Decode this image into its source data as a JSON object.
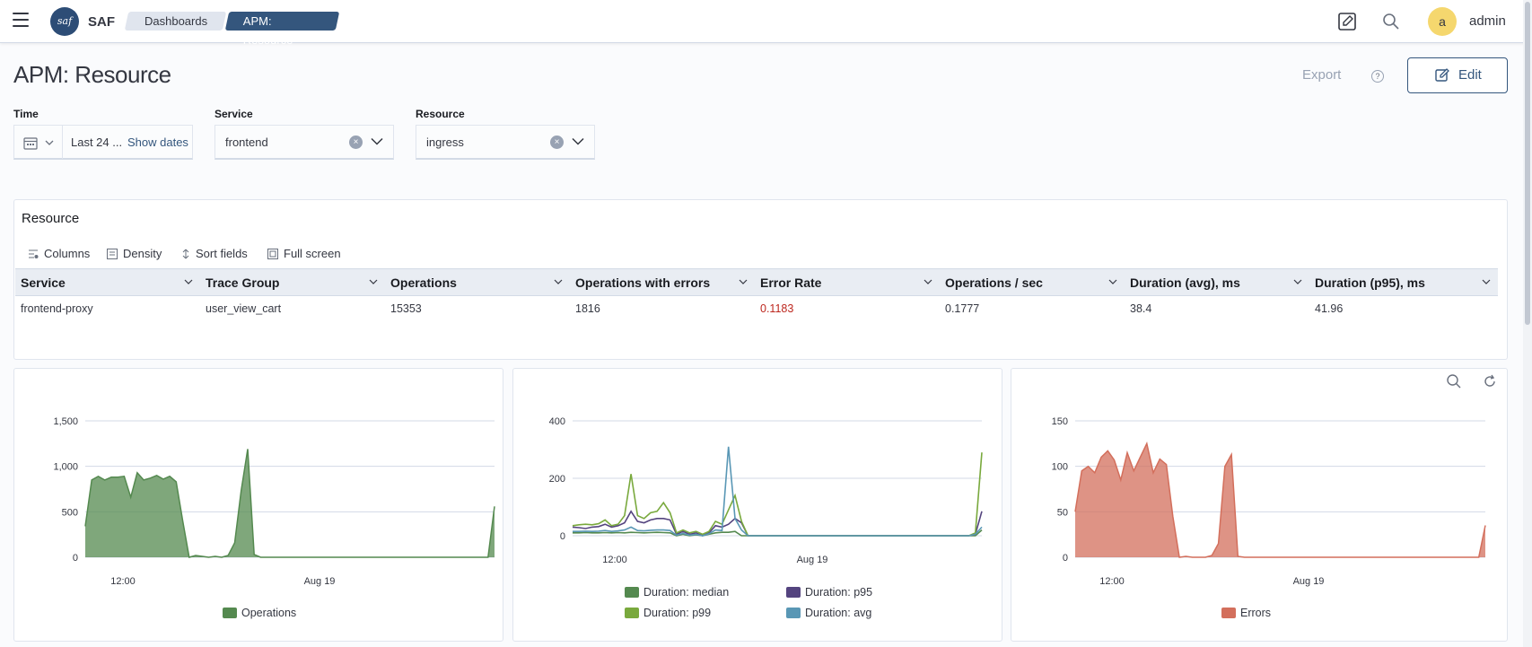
{
  "header": {
    "brand": "SAF",
    "logo_text": "saf",
    "breadcrumbs": [
      "Dashboards",
      "APM: Resource"
    ],
    "user_initial": "a",
    "username": "admin"
  },
  "page": {
    "title": "APM: Resource",
    "export_label": "Export",
    "help_label": "?",
    "edit_label": "Edit"
  },
  "controls": {
    "time": {
      "label": "Time",
      "value": "Last 24 ...",
      "show_dates": "Show dates"
    },
    "service": {
      "label": "Service",
      "value": "frontend"
    },
    "resource": {
      "label": "Resource",
      "value": "ingress"
    }
  },
  "table_panel": {
    "title": "Resource",
    "toolbar": [
      "Columns",
      "Density",
      "Sort fields",
      "Full screen"
    ],
    "columns": [
      "Service",
      "Trace Group",
      "Operations",
      "Operations with errors",
      "Error Rate",
      "Operations / sec",
      "Duration (avg), ms",
      "Duration (p95), ms"
    ],
    "rows": [
      [
        "frontend-proxy",
        "user_view_cart",
        "15353",
        "1816",
        "0.1183",
        "0.1777",
        "38.4",
        "41.96"
      ]
    ]
  },
  "chart_data": [
    {
      "type": "area",
      "x_ticks": [
        "12:00",
        "Aug 19"
      ],
      "y_ticks": [
        "0",
        "500",
        "1,000",
        "1,500"
      ],
      "ylim": [
        0,
        1500
      ],
      "series": [
        {
          "name": "Operations",
          "color": "#54894f",
          "values": [
            340,
            850,
            890,
            850,
            880,
            880,
            890,
            660,
            930,
            850,
            870,
            900,
            860,
            890,
            830,
            400,
            0,
            20,
            10,
            0,
            10,
            0,
            20,
            160,
            730,
            1190,
            30,
            0,
            0,
            0,
            0,
            0,
            0,
            0,
            0,
            0,
            0,
            0,
            0,
            0,
            0,
            0,
            0,
            0,
            0,
            0,
            0,
            0,
            0,
            0,
            0,
            0,
            0,
            0,
            0,
            0,
            0,
            0,
            0,
            0,
            0,
            0,
            0,
            560
          ]
        }
      ]
    },
    {
      "type": "line",
      "x_ticks": [
        "12:00",
        "Aug 19"
      ],
      "y_ticks": [
        "0",
        "200",
        "400"
      ],
      "ylim": [
        0,
        400
      ],
      "series": [
        {
          "name": "Duration: median",
          "color": "#54894f",
          "values": [
            10,
            10,
            11,
            10,
            10,
            11,
            10,
            11,
            10,
            12,
            11,
            10,
            11,
            12,
            11,
            10,
            0,
            5,
            0,
            3,
            0,
            5,
            10,
            12,
            12,
            15,
            0,
            0,
            0,
            0,
            0,
            0,
            0,
            0,
            0,
            0,
            0,
            0,
            0,
            0,
            0,
            0,
            0,
            0,
            0,
            0,
            0,
            0,
            0,
            0,
            0,
            0,
            0,
            0,
            0,
            0,
            0,
            0,
            0,
            0,
            0,
            0,
            0,
            20
          ]
        },
        {
          "name": "Duration: p95",
          "color": "#54447f",
          "values": [
            30,
            28,
            25,
            30,
            32,
            40,
            30,
            35,
            45,
            85,
            50,
            45,
            55,
            60,
            60,
            55,
            5,
            15,
            5,
            10,
            0,
            10,
            35,
            30,
            40,
            60,
            45,
            0,
            0,
            0,
            0,
            0,
            0,
            0,
            0,
            0,
            0,
            0,
            0,
            0,
            0,
            0,
            0,
            0,
            0,
            0,
            0,
            0,
            0,
            0,
            0,
            0,
            0,
            0,
            0,
            0,
            0,
            0,
            0,
            0,
            0,
            0,
            5,
            85
          ]
        },
        {
          "name": "Duration: p99",
          "color": "#79a93d",
          "values": [
            35,
            38,
            40,
            38,
            42,
            55,
            35,
            40,
            70,
            215,
            70,
            60,
            80,
            85,
            115,
            80,
            10,
            20,
            10,
            15,
            5,
            15,
            50,
            40,
            90,
            140,
            50,
            0,
            0,
            0,
            0,
            0,
            0,
            0,
            0,
            0,
            0,
            0,
            0,
            0,
            0,
            0,
            0,
            0,
            0,
            0,
            0,
            0,
            0,
            0,
            0,
            0,
            0,
            0,
            0,
            0,
            0,
            0,
            0,
            0,
            0,
            0,
            10,
            290
          ]
        },
        {
          "name": "Duration: avg",
          "color": "#5997b5",
          "values": [
            15,
            15,
            16,
            15,
            16,
            18,
            15,
            17,
            20,
            30,
            18,
            17,
            19,
            20,
            20,
            18,
            2,
            8,
            2,
            5,
            0,
            7,
            20,
            18,
            310,
            60,
            20,
            0,
            0,
            0,
            0,
            0,
            0,
            0,
            0,
            0,
            0,
            0,
            0,
            0,
            0,
            0,
            0,
            0,
            0,
            0,
            0,
            0,
            0,
            0,
            0,
            0,
            0,
            0,
            0,
            0,
            0,
            0,
            0,
            0,
            0,
            0,
            5,
            30
          ]
        }
      ]
    },
    {
      "type": "area",
      "x_ticks": [
        "12:00",
        "Aug 19"
      ],
      "y_ticks": [
        "0",
        "50",
        "100",
        "150"
      ],
      "ylim": [
        0,
        150
      ],
      "series": [
        {
          "name": "Errors",
          "color": "#d36f5c",
          "values": [
            50,
            95,
            100,
            93,
            110,
            117,
            107,
            85,
            115,
            95,
            110,
            125,
            93,
            108,
            102,
            45,
            0,
            1,
            0,
            0,
            0,
            2,
            15,
            100,
            113,
            1,
            0,
            0,
            0,
            0,
            0,
            0,
            0,
            0,
            0,
            0,
            0,
            0,
            0,
            0,
            0,
            0,
            0,
            0,
            0,
            0,
            0,
            0,
            0,
            0,
            0,
            0,
            0,
            0,
            0,
            0,
            0,
            0,
            0,
            0,
            0,
            0,
            0,
            35
          ]
        }
      ]
    }
  ]
}
